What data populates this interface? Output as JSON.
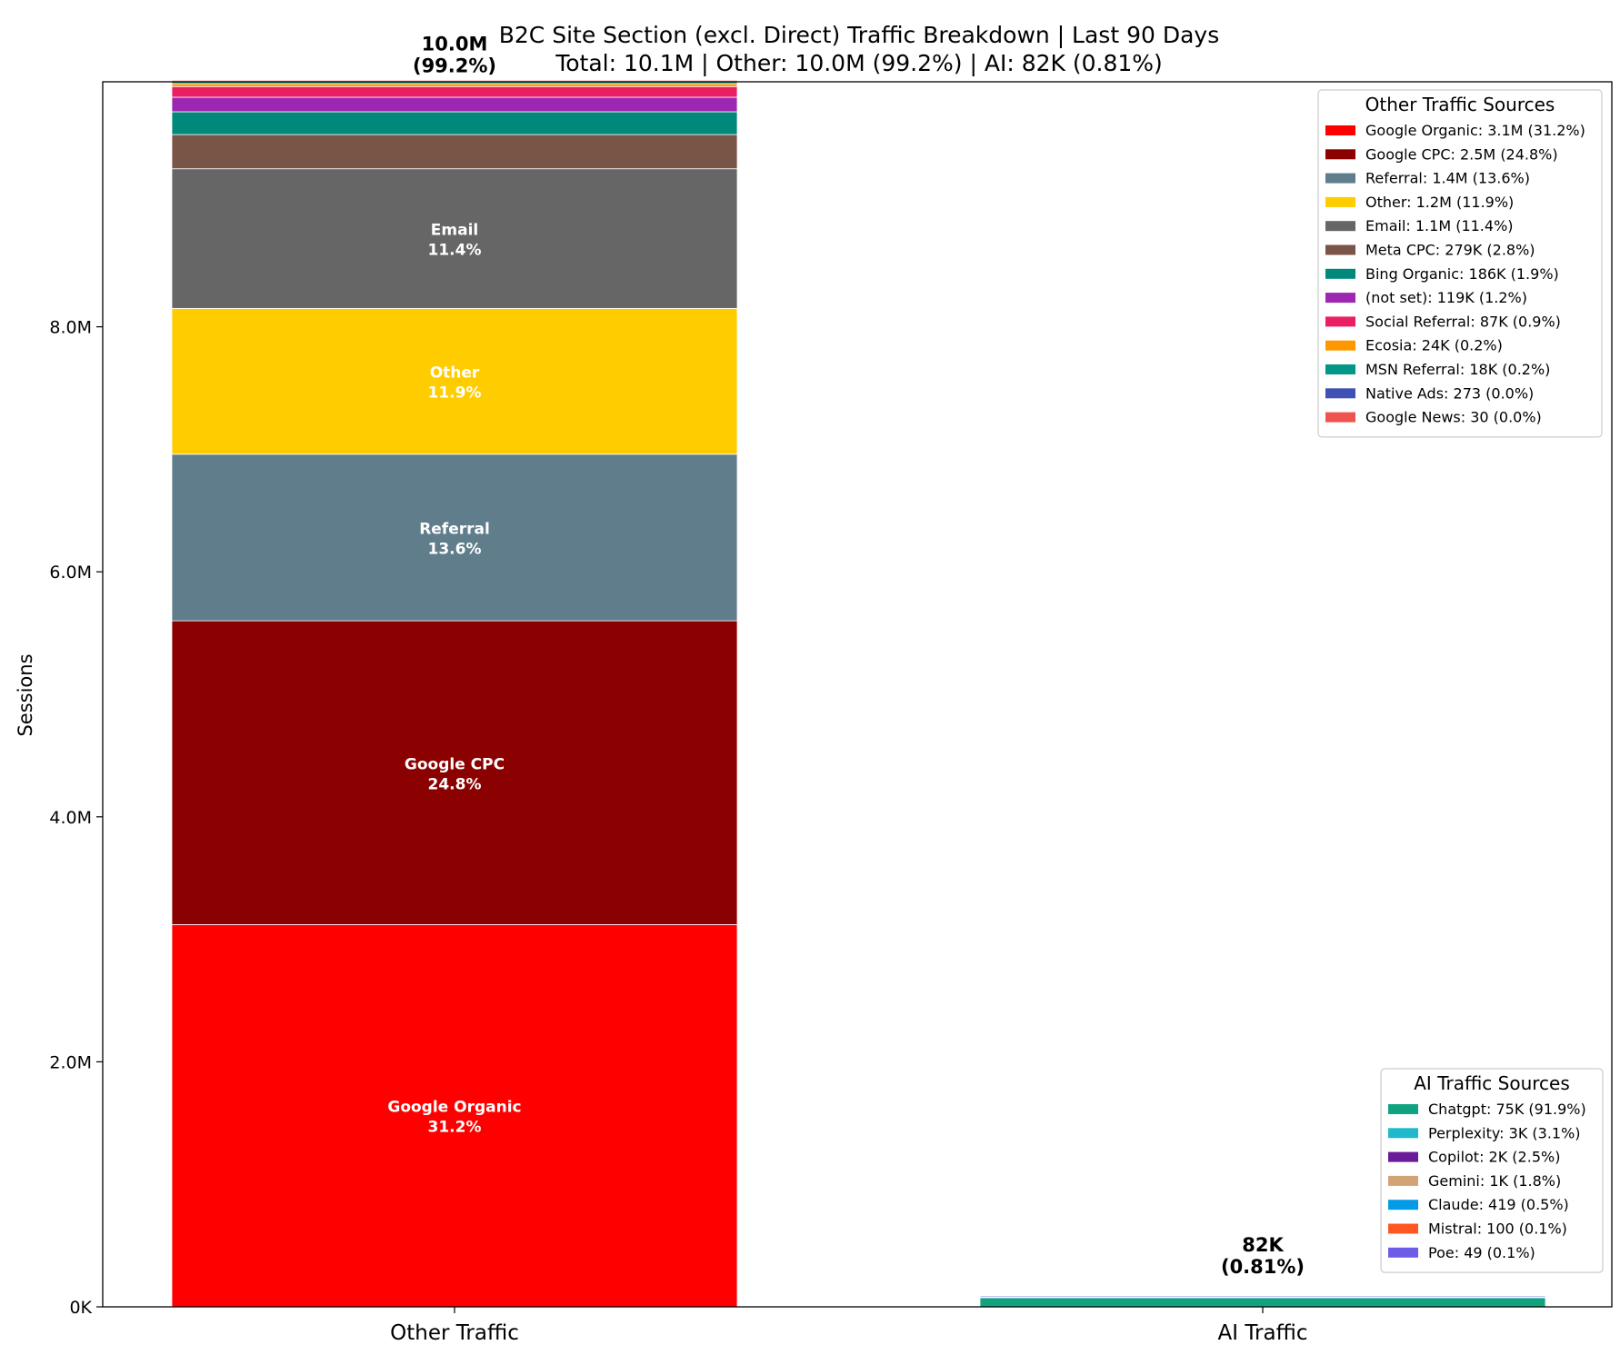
{
  "chart_data": {
    "type": "bar",
    "stacked": true,
    "title": "B2C Site Section (excl. Direct) Traffic Breakdown | Last 90 Days",
    "subtitle": "Total: 10.1M | Other: 10.0M (99.2%) | AI: 82K (0.81%)",
    "ylabel": "Sessions",
    "ylim": [
      0,
      10000000
    ],
    "yticks": [
      {
        "value": 0,
        "label": "0K"
      },
      {
        "value": 2000000,
        "label": "2.0M"
      },
      {
        "value": 4000000,
        "label": "4.0M"
      },
      {
        "value": 6000000,
        "label": "6.0M"
      },
      {
        "value": 8000000,
        "label": "8.0M"
      }
    ],
    "categories": [
      "Other Traffic",
      "AI Traffic"
    ],
    "stacks": [
      {
        "category": "Other Traffic",
        "total_label": "10.0M",
        "total_pct": "(99.2%)",
        "legend_title": "Other Traffic Sources",
        "segments": [
          {
            "name": "Google Organic",
            "value": 3120000,
            "pct": "31.2%",
            "color": "#ff0000",
            "legend": "Google Organic: 3.1M (31.2%)",
            "show_label": true
          },
          {
            "name": "Google CPC",
            "value": 2480000,
            "pct": "24.8%",
            "color": "#8b0000",
            "legend": "Google CPC: 2.5M (24.8%)",
            "show_label": true
          },
          {
            "name": "Referral",
            "value": 1360000,
            "pct": "13.6%",
            "color": "#607d8b",
            "legend": "Referral: 1.4M (13.6%)",
            "show_label": true
          },
          {
            "name": "Other",
            "value": 1190000,
            "pct": "11.9%",
            "color": "#ffcc00",
            "legend": "Other: 1.2M (11.9%)",
            "show_label": true
          },
          {
            "name": "Email",
            "value": 1140000,
            "pct": "11.4%",
            "color": "#666666",
            "legend": "Email: 1.1M (11.4%)",
            "show_label": true
          },
          {
            "name": "Meta CPC",
            "value": 279000,
            "pct": "2.8%",
            "color": "#795548",
            "legend": "Meta CPC: 279K (2.8%)",
            "show_label": false
          },
          {
            "name": "Bing Organic",
            "value": 186000,
            "pct": "1.9%",
            "color": "#00897b",
            "legend": "Bing Organic: 186K (1.9%)",
            "show_label": false
          },
          {
            "name": "(not set)",
            "value": 119000,
            "pct": "1.2%",
            "color": "#9c27b0",
            "legend": "(not set): 119K (1.2%)",
            "show_label": false
          },
          {
            "name": "Social Referral",
            "value": 87000,
            "pct": "0.9%",
            "color": "#e91e63",
            "legend": "Social Referral: 87K (0.9%)",
            "show_label": false
          },
          {
            "name": "Ecosia",
            "value": 24000,
            "pct": "0.2%",
            "color": "#ff9800",
            "legend": "Ecosia: 24K (0.2%)",
            "show_label": false
          },
          {
            "name": "MSN Referral",
            "value": 18000,
            "pct": "0.2%",
            "color": "#009688",
            "legend": "MSN Referral: 18K (0.2%)",
            "show_label": false
          },
          {
            "name": "Native Ads",
            "value": 273,
            "pct": "0.0%",
            "color": "#3f51b5",
            "legend": "Native Ads: 273 (0.0%)",
            "show_label": false
          },
          {
            "name": "Google News",
            "value": 30,
            "pct": "0.0%",
            "color": "#ef5350",
            "legend": "Google News: 30 (0.0%)",
            "show_label": false
          }
        ]
      },
      {
        "category": "AI Traffic",
        "total_label": "82K",
        "total_pct": "(0.81%)",
        "legend_title": "AI Traffic Sources",
        "segments": [
          {
            "name": "Chatgpt",
            "value": 75000,
            "pct": "91.9%",
            "color": "#10a37f",
            "legend": "Chatgpt: 75K (91.9%)",
            "show_label": false
          },
          {
            "name": "Perplexity",
            "value": 3000,
            "pct": "3.1%",
            "color": "#20b8cd",
            "legend": "Perplexity: 3K (3.1%)",
            "show_label": false
          },
          {
            "name": "Copilot",
            "value": 2000,
            "pct": "2.5%",
            "color": "#6a1b9a",
            "legend": "Copilot: 2K (2.5%)",
            "show_label": false
          },
          {
            "name": "Gemini",
            "value": 1000,
            "pct": "1.8%",
            "color": "#d4a373",
            "legend": "Gemini: 1K (1.8%)",
            "show_label": false
          },
          {
            "name": "Claude",
            "value": 419,
            "pct": "0.5%",
            "color": "#039be5",
            "legend": "Claude: 419 (0.5%)",
            "show_label": false
          },
          {
            "name": "Mistral",
            "value": 100,
            "pct": "0.1%",
            "color": "#ff5722",
            "legend": "Mistral: 100 (0.1%)",
            "show_label": false
          },
          {
            "name": "Poe",
            "value": 49,
            "pct": "0.1%",
            "color": "#6c5ce7",
            "legend": "Poe: 49 (0.1%)",
            "show_label": false
          }
        ]
      }
    ],
    "legends": [
      {
        "title": "Other Traffic Sources",
        "placement": "top-right"
      },
      {
        "title": "AI Traffic Sources",
        "placement": "bottom-right"
      }
    ]
  }
}
